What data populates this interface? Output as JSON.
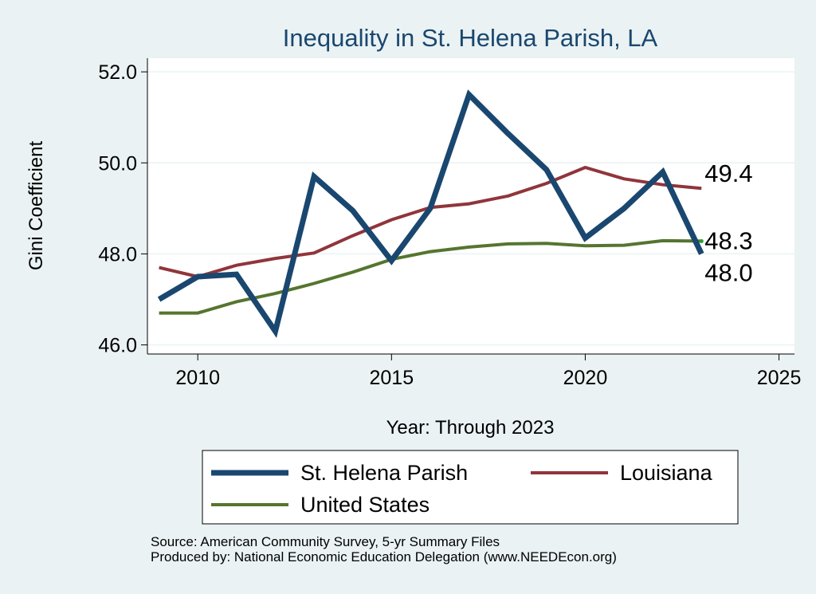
{
  "chart_data": {
    "type": "line",
    "title": "Inequality in St. Helena Parish, LA",
    "xlabel": "Year: Through 2023",
    "ylabel": "Gini Coefficient",
    "xlim": [
      2008.7,
      2025.4
    ],
    "ylim": [
      45.8,
      52.3
    ],
    "x_ticks": [
      2010,
      2015,
      2020,
      2025
    ],
    "y_ticks": [
      46.0,
      48.0,
      50.0,
      52.0
    ],
    "y_tick_labels": [
      "46.0",
      "48.0",
      "50.0",
      "52.0"
    ],
    "grid": true,
    "legend_position": "bottom",
    "x": [
      2009,
      2010,
      2011,
      2012,
      2013,
      2014,
      2015,
      2016,
      2017,
      2018,
      2019,
      2020,
      2021,
      2022,
      2023
    ],
    "series": [
      {
        "name": "St. Helena Parish",
        "color": "#1a476f",
        "values": [
          47.0,
          47.5,
          47.55,
          46.3,
          49.7,
          48.95,
          47.85,
          49.0,
          51.5,
          50.65,
          49.85,
          48.35,
          49.0,
          49.8,
          48.0
        ],
        "end_label": "48.0"
      },
      {
        "name": "Louisiana",
        "color": "#90353b",
        "values": [
          47.7,
          47.5,
          47.75,
          47.9,
          48.02,
          48.4,
          48.75,
          49.02,
          49.1,
          49.27,
          49.55,
          49.9,
          49.65,
          49.52,
          49.44
        ],
        "end_label": "49.4"
      },
      {
        "name": "United States",
        "color": "#55752f",
        "values": [
          46.7,
          46.7,
          46.95,
          47.13,
          47.35,
          47.6,
          47.88,
          48.05,
          48.15,
          48.22,
          48.23,
          48.18,
          48.19,
          48.29,
          48.28
        ],
        "end_label": "48.3"
      }
    ],
    "source_lines": [
      "Source: American Community Survey, 5-yr Summary Files",
      "Produced by: National Economic Education Delegation (www.NEEDEcon.org)"
    ]
  }
}
